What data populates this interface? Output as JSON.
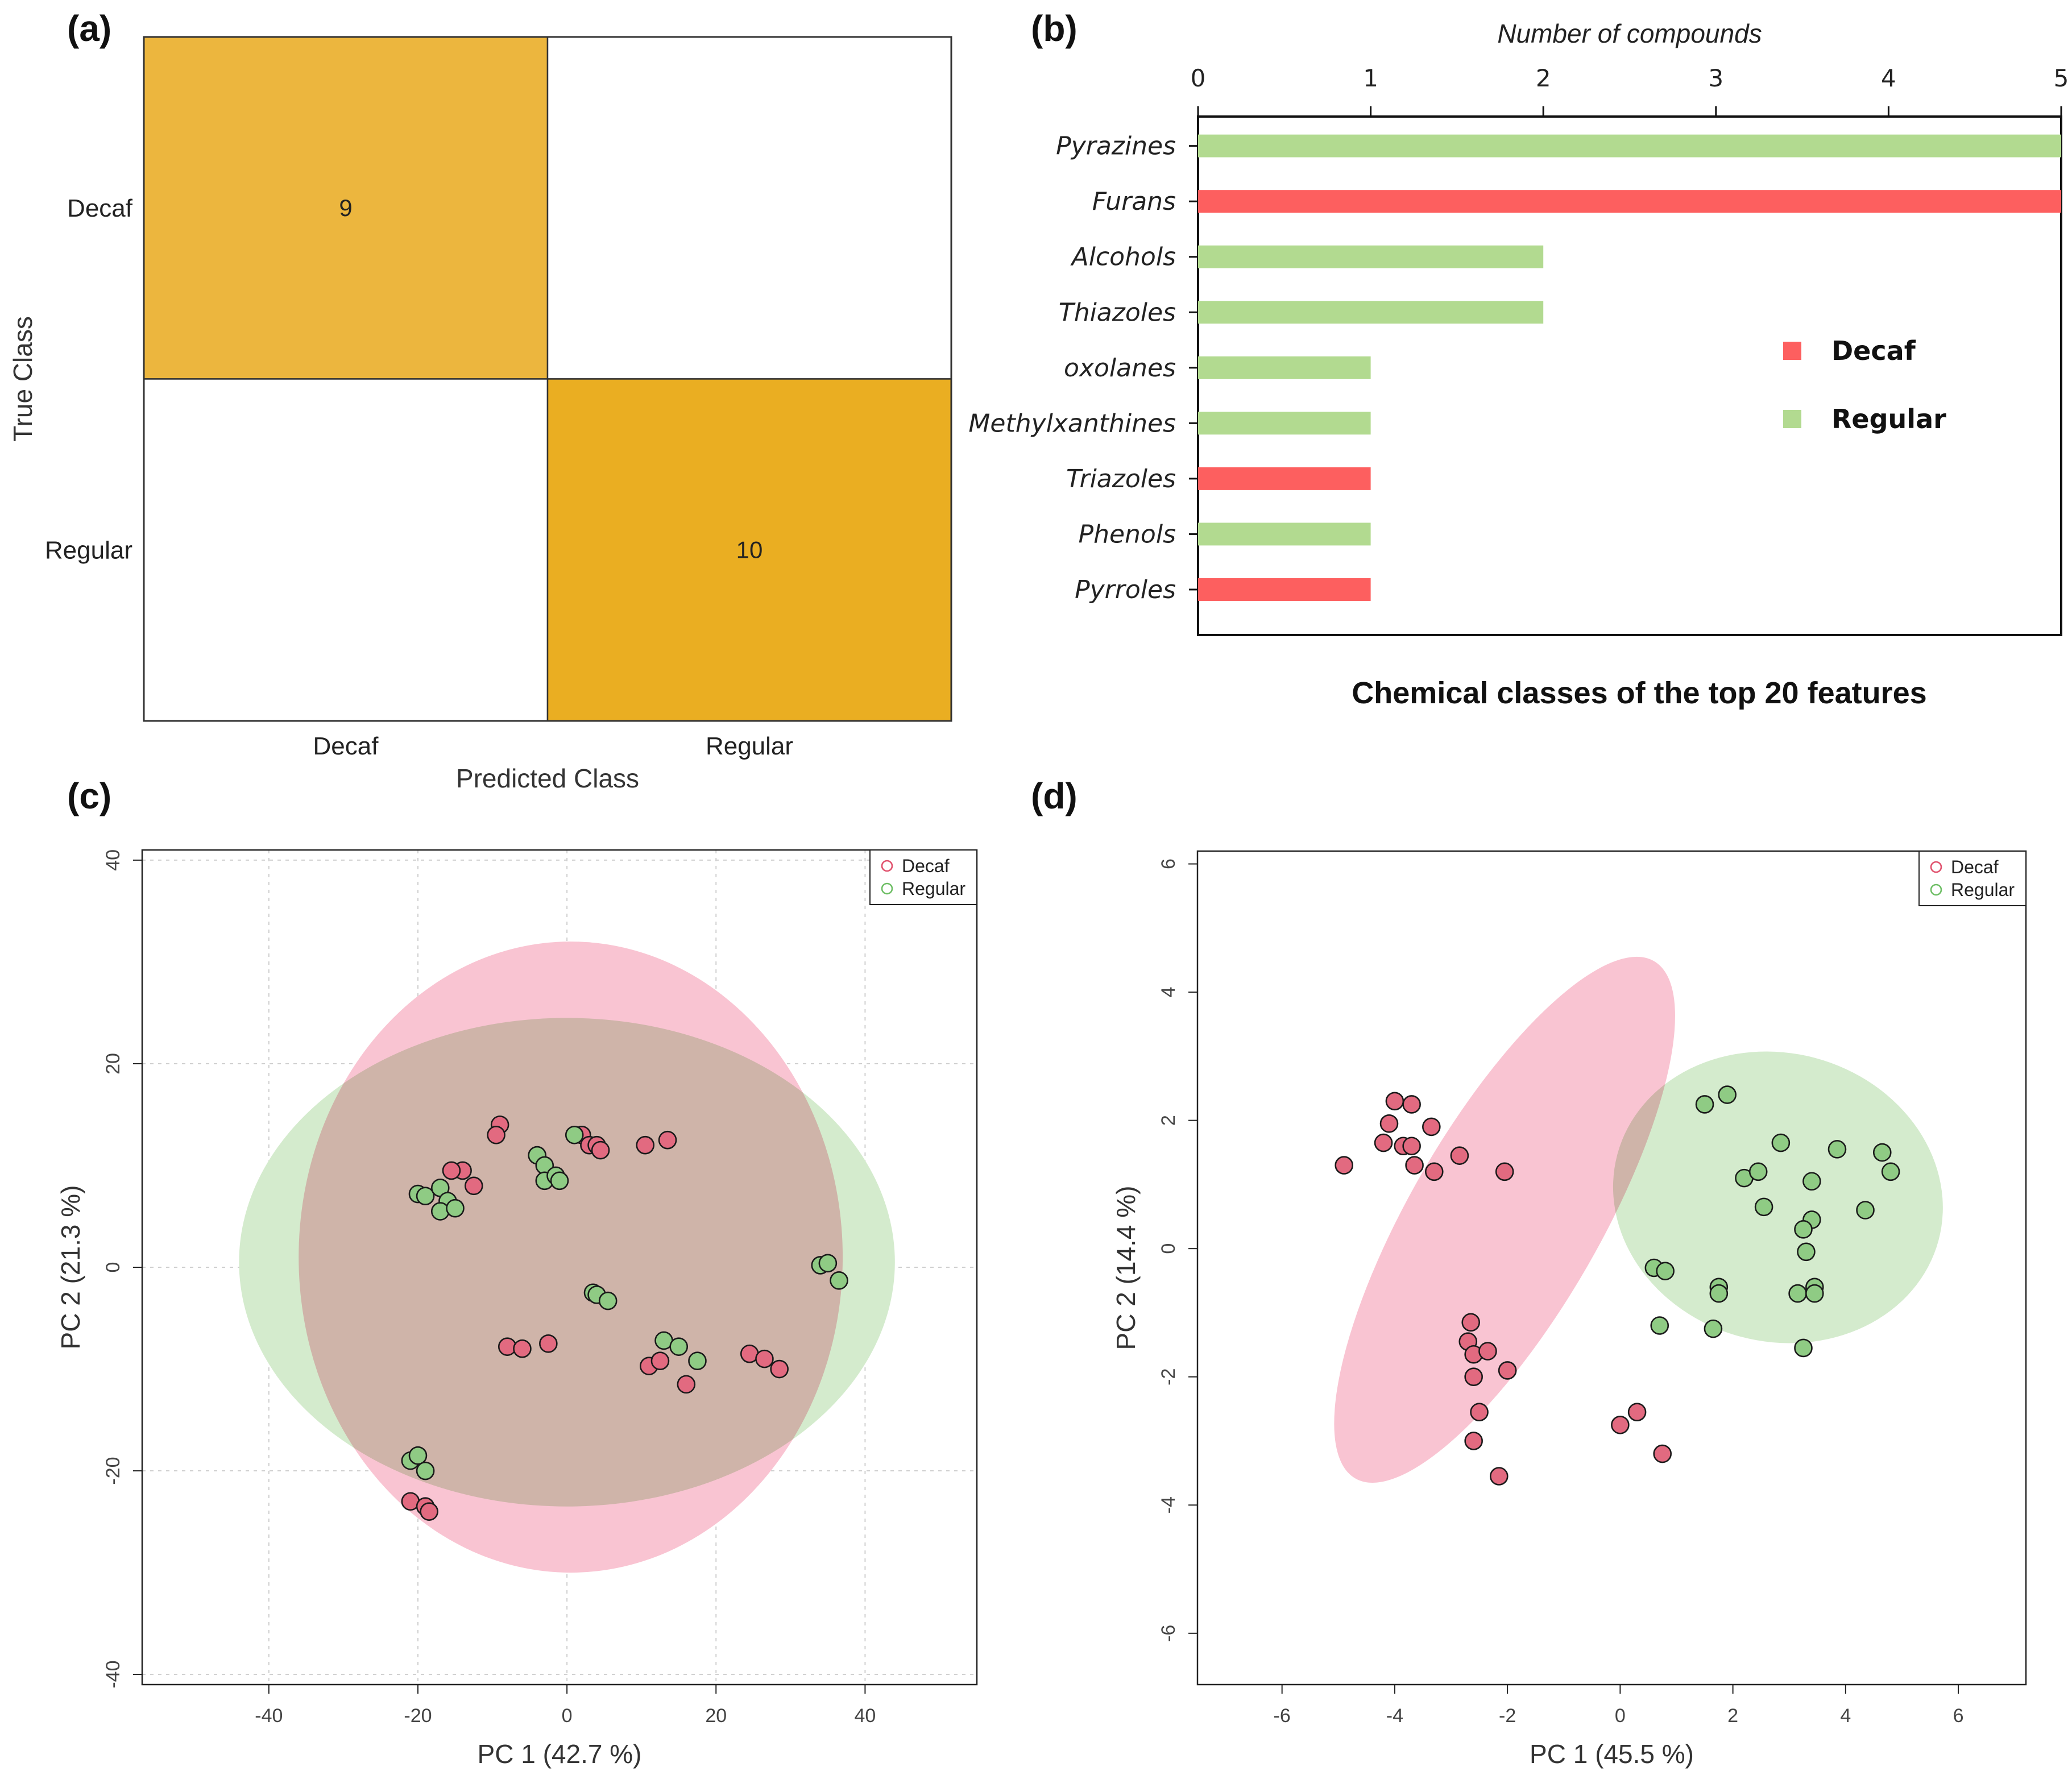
{
  "colors": {
    "confusion_decaf": "#ECB63E",
    "confusion_regular": "#EAAE22",
    "bar_decaf": "#FD5F5F",
    "bar_regular": "#B2DA90",
    "ellipse_decaf": "#F9C4D2",
    "ellipse_regular": "#D4EBCD",
    "ellipse_overlap": "#D9C3B2",
    "point_decaf": "#E26A80",
    "point_regular": "#8FCB84"
  },
  "panels": {
    "a": "(a)",
    "b": "(b)",
    "c": "(c)",
    "d": "(d)"
  },
  "chart_data": [
    {
      "type": "heatmap",
      "panel": "(a)",
      "xlabel": "Predicted Class",
      "ylabel": "True Class",
      "x_categories": [
        "Decaf",
        "Regular"
      ],
      "y_categories": [
        "Decaf",
        "Regular"
      ],
      "matrix": [
        [
          9,
          0
        ],
        [
          0,
          10
        ]
      ],
      "cell_labels": [
        [
          "9",
          ""
        ],
        [
          "",
          "10"
        ]
      ]
    },
    {
      "type": "bar",
      "orientation": "horizontal",
      "panel": "(b)",
      "title": "Chemical classes of the top 20 features",
      "xlabel": "Number of compounds",
      "xlim": [
        0,
        5
      ],
      "xticks": [
        "0",
        "1",
        "2",
        "3",
        "4",
        "5"
      ],
      "categories": [
        "Pyrazines",
        "Furans",
        "Alcohols",
        "Thiazoles",
        "oxolanes",
        "Methylxanthines",
        "Triazoles",
        "Phenols",
        "Pyrroles"
      ],
      "values": [
        5,
        5,
        2,
        2,
        1,
        1,
        1,
        1,
        1
      ],
      "groups": [
        "Regular",
        "Decaf",
        "Regular",
        "Regular",
        "Regular",
        "Regular",
        "Decaf",
        "Regular",
        "Decaf"
      ],
      "legend": [
        "Decaf",
        "Regular"
      ],
      "legend_position": "right"
    },
    {
      "type": "scatter",
      "panel": "(c)",
      "xlabel": "PC 1 (42.7 %)",
      "ylabel": "PC 2 (21.3 %)",
      "xlim": [
        -57,
        55
      ],
      "ylim": [
        -41,
        41
      ],
      "xticks": [
        "-40",
        "-20",
        "0",
        "20",
        "40"
      ],
      "yticks": [
        "-40",
        "-20",
        "0",
        "20",
        "40"
      ],
      "grid": true,
      "legend": [
        "Decaf",
        "Regular"
      ],
      "legend_position": "top-right",
      "ellipses": [
        {
          "name": "Regular",
          "cx": 0,
          "cy": 0.5,
          "rx": 44,
          "ry": 24
        },
        {
          "name": "Decaf",
          "cx": 0.5,
          "cy": 1,
          "rx": 36.5,
          "ry": 31
        }
      ],
      "series": [
        {
          "name": "Decaf",
          "points": [
            [
              -9,
              14
            ],
            [
              -9.5,
              13
            ],
            [
              -14,
              9.5
            ],
            [
              -15.5,
              9.5
            ],
            [
              -12.5,
              8
            ],
            [
              2,
              13
            ],
            [
              3,
              12
            ],
            [
              4,
              12
            ],
            [
              4.5,
              11.5
            ],
            [
              10.5,
              12
            ],
            [
              13.5,
              12.5
            ],
            [
              -8,
              -7.8
            ],
            [
              -6,
              -8
            ],
            [
              -2.5,
              -7.5
            ],
            [
              11,
              -9.7
            ],
            [
              12.5,
              -9.2
            ],
            [
              16,
              -11.5
            ],
            [
              24.5,
              -8.5
            ],
            [
              26.5,
              -9
            ],
            [
              28.5,
              -10
            ],
            [
              -21,
              -23
            ],
            [
              -19,
              -23.5
            ],
            [
              -18.5,
              -24
            ]
          ]
        },
        {
          "name": "Regular",
          "points": [
            [
              -20,
              7.2
            ],
            [
              -19,
              7
            ],
            [
              -17,
              7.8
            ],
            [
              -16,
              6.5
            ],
            [
              -17,
              5.5
            ],
            [
              -15,
              5.8
            ],
            [
              -4,
              11
            ],
            [
              -3,
              10
            ],
            [
              -3,
              8.5
            ],
            [
              -1.5,
              9
            ],
            [
              -1,
              8.5
            ],
            [
              1,
              13
            ],
            [
              3.5,
              -2.5
            ],
            [
              4,
              -2.7
            ],
            [
              5.5,
              -3.3
            ],
            [
              13,
              -7.2
            ],
            [
              15,
              -7.8
            ],
            [
              17.5,
              -9.2
            ],
            [
              34,
              0.2
            ],
            [
              35,
              0.4
            ],
            [
              36.5,
              -1.3
            ],
            [
              -21,
              -19
            ],
            [
              -20,
              -18.5
            ],
            [
              -19,
              -20
            ]
          ]
        }
      ]
    },
    {
      "type": "scatter",
      "panel": "(d)",
      "xlabel": "PC 1 (45.5 %)",
      "ylabel": "PC 2 (14.4 %)",
      "xlim": [
        -7.5,
        7.2
      ],
      "ylim": [
        -6.8,
        6.2
      ],
      "xticks": [
        "-6",
        "-4",
        "-2",
        "0",
        "2",
        "4",
        "6"
      ],
      "yticks": [
        "-6",
        "-4",
        "-2",
        "0",
        "2",
        "4",
        "6"
      ],
      "grid": false,
      "legend": [
        "Decaf",
        "Regular"
      ],
      "legend_position": "top-right",
      "ellipses": [
        {
          "name": "Decaf",
          "cx": -2.05,
          "cy": 0.45,
          "rx": 5.3,
          "ry": 1.48,
          "angle_deg": -60
        },
        {
          "name": "Regular",
          "cx": 2.8,
          "cy": 0.8,
          "rx": 2.95,
          "ry": 2.25,
          "angle_deg": 15
        }
      ],
      "series": [
        {
          "name": "Decaf",
          "points": [
            [
              -4.9,
              1.3
            ],
            [
              -4.2,
              1.65
            ],
            [
              -4.1,
              1.95
            ],
            [
              -4,
              2.3
            ],
            [
              -3.85,
              1.6
            ],
            [
              -3.7,
              2.25
            ],
            [
              -3.7,
              1.6
            ],
            [
              -3.65,
              1.3
            ],
            [
              -3.35,
              1.9
            ],
            [
              -3.3,
              1.2
            ],
            [
              -2.85,
              1.45
            ],
            [
              -2.05,
              1.2
            ],
            [
              -2.65,
              -1.15
            ],
            [
              -2.7,
              -1.45
            ],
            [
              -2.6,
              -1.65
            ],
            [
              -2.35,
              -1.6
            ],
            [
              -2.6,
              -2
            ],
            [
              -2,
              -1.9
            ],
            [
              -2.5,
              -2.55
            ],
            [
              -2.6,
              -3
            ],
            [
              -2.15,
              -3.55
            ],
            [
              0,
              -2.75
            ],
            [
              0.3,
              -2.55
            ],
            [
              0.75,
              -3.2
            ]
          ]
        },
        {
          "name": "Regular",
          "points": [
            [
              1.5,
              2.25
            ],
            [
              1.9,
              2.4
            ],
            [
              2.2,
              1.1
            ],
            [
              2.45,
              1.2
            ],
            [
              2.55,
              0.65
            ],
            [
              2.85,
              1.65
            ],
            [
              3.4,
              1.05
            ],
            [
              3.85,
              1.55
            ],
            [
              4.65,
              1.5
            ],
            [
              4.8,
              1.2
            ],
            [
              4.35,
              0.6
            ],
            [
              3.4,
              0.45
            ],
            [
              3.25,
              0.3
            ],
            [
              3.3,
              -0.05
            ],
            [
              0.6,
              -0.3
            ],
            [
              0.8,
              -0.35
            ],
            [
              0.7,
              -1.2
            ],
            [
              1.75,
              -0.6
            ],
            [
              1.75,
              -0.7
            ],
            [
              1.65,
              -1.25
            ],
            [
              3.15,
              -0.7
            ],
            [
              3.45,
              -0.6
            ],
            [
              3.45,
              -0.7
            ],
            [
              3.25,
              -1.55
            ]
          ]
        }
      ]
    }
  ]
}
